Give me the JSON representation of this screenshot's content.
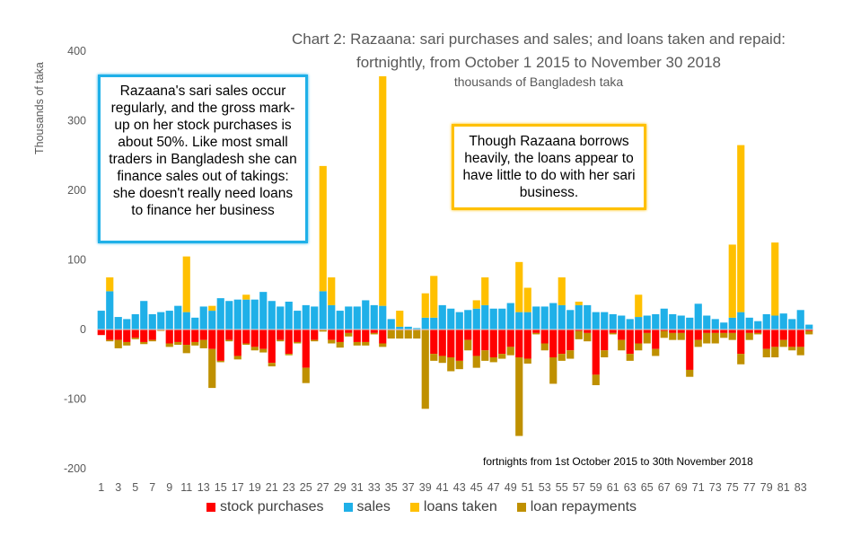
{
  "chart_data": {
    "type": "bar",
    "title_line1": "Chart 2: Razaana: sari purchases and sales; and loans taken and repaid:",
    "title_line2": "fortnightly, from October 1 2015 to November 30 2018",
    "subtitle": "thousands of Bangladesh taka",
    "ylabel": "Thousands of taka",
    "x_caption": "fortnights  from 1st October 2015  to 30th  November 2018",
    "ylim": [
      -200,
      400
    ],
    "yticks": [
      -200,
      -100,
      0,
      100,
      200,
      300,
      400
    ],
    "x": [
      1,
      2,
      3,
      4,
      5,
      6,
      7,
      8,
      9,
      10,
      11,
      12,
      13,
      14,
      15,
      16,
      17,
      18,
      19,
      20,
      21,
      22,
      23,
      24,
      25,
      26,
      27,
      28,
      29,
      30,
      31,
      32,
      33,
      34,
      35,
      36,
      37,
      38,
      39,
      40,
      41,
      42,
      43,
      44,
      45,
      46,
      47,
      48,
      49,
      50,
      51,
      52,
      53,
      54,
      55,
      56,
      57,
      58,
      59,
      60,
      61,
      62,
      63,
      64,
      65,
      66,
      67,
      68,
      69,
      70,
      71,
      72,
      73,
      74,
      75,
      76,
      77,
      78,
      79,
      80,
      81,
      82,
      83,
      84
    ],
    "xtick_labels": [
      "1",
      "3",
      "5",
      "7",
      "9",
      "11",
      "13",
      "15",
      "17",
      "19",
      "21",
      "23",
      "25",
      "27",
      "29",
      "31",
      "33",
      "35",
      "37",
      "39",
      "41",
      "43",
      "45",
      "47",
      "49",
      "51",
      "53",
      "55",
      "57",
      "59",
      "61",
      "63",
      "65",
      "67",
      "69",
      "71",
      "73",
      "75",
      "77",
      "79",
      "81",
      "83"
    ],
    "series": [
      {
        "name": "stock purchases",
        "color": "#ff0000",
        "stack": "negative",
        "values": [
          -8,
          -15,
          -15,
          -18,
          -12,
          -18,
          -15,
          -1,
          -20,
          -18,
          -22,
          -18,
          -15,
          -28,
          -45,
          -15,
          -38,
          -20,
          -25,
          -28,
          -48,
          -15,
          -35,
          -18,
          -55,
          -15,
          -1,
          -15,
          -18,
          -5,
          -18,
          -18,
          -5,
          -20,
          -1,
          -1,
          -1,
          -1,
          -1,
          -35,
          -38,
          -40,
          -45,
          -15,
          -38,
          -30,
          -40,
          -35,
          -25,
          -40,
          -42,
          -5,
          -20,
          -40,
          -35,
          -30,
          -2,
          -5,
          -65,
          -30,
          -5,
          -15,
          -35,
          -20,
          -5,
          -28,
          -2,
          -5,
          -5,
          -58,
          -15,
          -5,
          -5,
          -5,
          -5,
          -35,
          -5,
          -5,
          -28,
          -25,
          -15,
          -25,
          -25,
          -2
        ]
      },
      {
        "name": "sales",
        "color": "#1fb0e8",
        "stack": "positive",
        "values": [
          27,
          55,
          18,
          15,
          22,
          41,
          22,
          25,
          27,
          34,
          25,
          17,
          33,
          27,
          45,
          41,
          43,
          43,
          43,
          54,
          41,
          33,
          40,
          27,
          35,
          33,
          55,
          35,
          27,
          33,
          33,
          42,
          35,
          34,
          15,
          4,
          4,
          2,
          17,
          17,
          35,
          30,
          25,
          28,
          30,
          35,
          30,
          30,
          38,
          25,
          25,
          33,
          33,
          38,
          35,
          28,
          35,
          35,
          25,
          25,
          22,
          20,
          15,
          18,
          20,
          22,
          30,
          22,
          20,
          17,
          37,
          20,
          15,
          10,
          17,
          25,
          17,
          12,
          22,
          20,
          23,
          15,
          28,
          7
        ]
      },
      {
        "name": "loans taken",
        "color": "#ffc000",
        "stack": "positive",
        "values": [
          0,
          20,
          0,
          0,
          0,
          0,
          0,
          0,
          0,
          0,
          80,
          0,
          0,
          7,
          0,
          0,
          0,
          7,
          0,
          0,
          0,
          0,
          0,
          0,
          0,
          0,
          180,
          40,
          0,
          0,
          0,
          0,
          0,
          330,
          0,
          23,
          0,
          0,
          35,
          60,
          0,
          0,
          0,
          0,
          12,
          40,
          0,
          0,
          0,
          72,
          35,
          0,
          0,
          0,
          40,
          0,
          5,
          0,
          0,
          0,
          0,
          0,
          0,
          32,
          0,
          0,
          0,
          0,
          0,
          0,
          0,
          0,
          0,
          0,
          105,
          240,
          0,
          0,
          0,
          105,
          0,
          0,
          0,
          0
        ]
      },
      {
        "name": "loan repayments",
        "color": "#bf9000",
        "stack": "negative",
        "values": [
          0,
          -2,
          -12,
          -5,
          -2,
          -3,
          -2,
          -1,
          -5,
          -4,
          -12,
          -5,
          -12,
          -56,
          -2,
          -2,
          -5,
          -2,
          -5,
          -5,
          -5,
          -2,
          -2,
          -2,
          -22,
          -2,
          -2,
          -5,
          -8,
          -5,
          -5,
          -5,
          -2,
          -5,
          -12,
          -12,
          -12,
          -12,
          -113,
          -10,
          -10,
          -20,
          -12,
          -15,
          -17,
          -15,
          -7,
          -7,
          -12,
          -113,
          -7,
          -2,
          -10,
          -38,
          -10,
          -12,
          -12,
          -12,
          -15,
          -10,
          -2,
          -15,
          -10,
          -10,
          -15,
          -10,
          -10,
          -10,
          -10,
          -10,
          -10,
          -15,
          -15,
          -7,
          -10,
          -15,
          -10,
          -2,
          -12,
          -15,
          -10,
          -5,
          -12,
          -5
        ]
      }
    ],
    "legend_position": "bottom",
    "grid": false,
    "annotations": [
      "Razaana's sari sales occur regularly, and the gross mark-up on her stock purchases is about 50%. Like most small traders in Bangladesh she can finance sales out of takings: she doesn't really need loans to finance her business",
      "Though Razaana borrows heavily, the loans appear to have little to do with her sari business."
    ]
  }
}
